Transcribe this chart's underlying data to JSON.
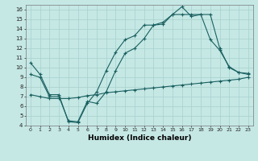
{
  "title": "",
  "xlabel": "Humidex (Indice chaleur)",
  "ylabel": "",
  "background_color": "#c5e8e5",
  "grid_color": "#a8d0cc",
  "line_color": "#1a6060",
  "x_min": -0.5,
  "x_max": 23.5,
  "y_min": 4,
  "y_max": 16.5,
  "line1_x": [
    0,
    1,
    2,
    3,
    4,
    5,
    6,
    7,
    8,
    9,
    10,
    11,
    12,
    13,
    14,
    15,
    16,
    17,
    18,
    19,
    20,
    21,
    22,
    23
  ],
  "line1_y": [
    10.5,
    9.3,
    7.2,
    7.2,
    4.4,
    4.3,
    6.3,
    7.5,
    9.7,
    11.6,
    12.9,
    13.3,
    14.4,
    14.4,
    14.7,
    15.5,
    16.3,
    15.3,
    15.5,
    12.9,
    11.8,
    10.1,
    9.5,
    9.4
  ],
  "line2_x": [
    0,
    1,
    2,
    3,
    4,
    5,
    6,
    7,
    8,
    9,
    10,
    11,
    12,
    13,
    14,
    15,
    16,
    17,
    18,
    19,
    20,
    21,
    22,
    23
  ],
  "line2_y": [
    7.2,
    7.0,
    6.8,
    6.8,
    6.8,
    6.9,
    7.1,
    7.2,
    7.4,
    7.5,
    7.6,
    7.7,
    7.8,
    7.9,
    8.0,
    8.1,
    8.2,
    8.3,
    8.4,
    8.5,
    8.6,
    8.7,
    8.8,
    9.0
  ],
  "line3_x": [
    0,
    1,
    2,
    3,
    4,
    5,
    6,
    7,
    8,
    9,
    10,
    11,
    12,
    13,
    14,
    15,
    16,
    17,
    18,
    19,
    20,
    21,
    22,
    23
  ],
  "line3_y": [
    9.3,
    9.0,
    7.0,
    7.0,
    4.5,
    4.4,
    6.5,
    6.3,
    7.5,
    9.7,
    11.5,
    12.0,
    13.0,
    14.4,
    14.5,
    15.5,
    15.5,
    15.5,
    15.5,
    15.5,
    12.0,
    10.0,
    9.5,
    9.3
  ]
}
